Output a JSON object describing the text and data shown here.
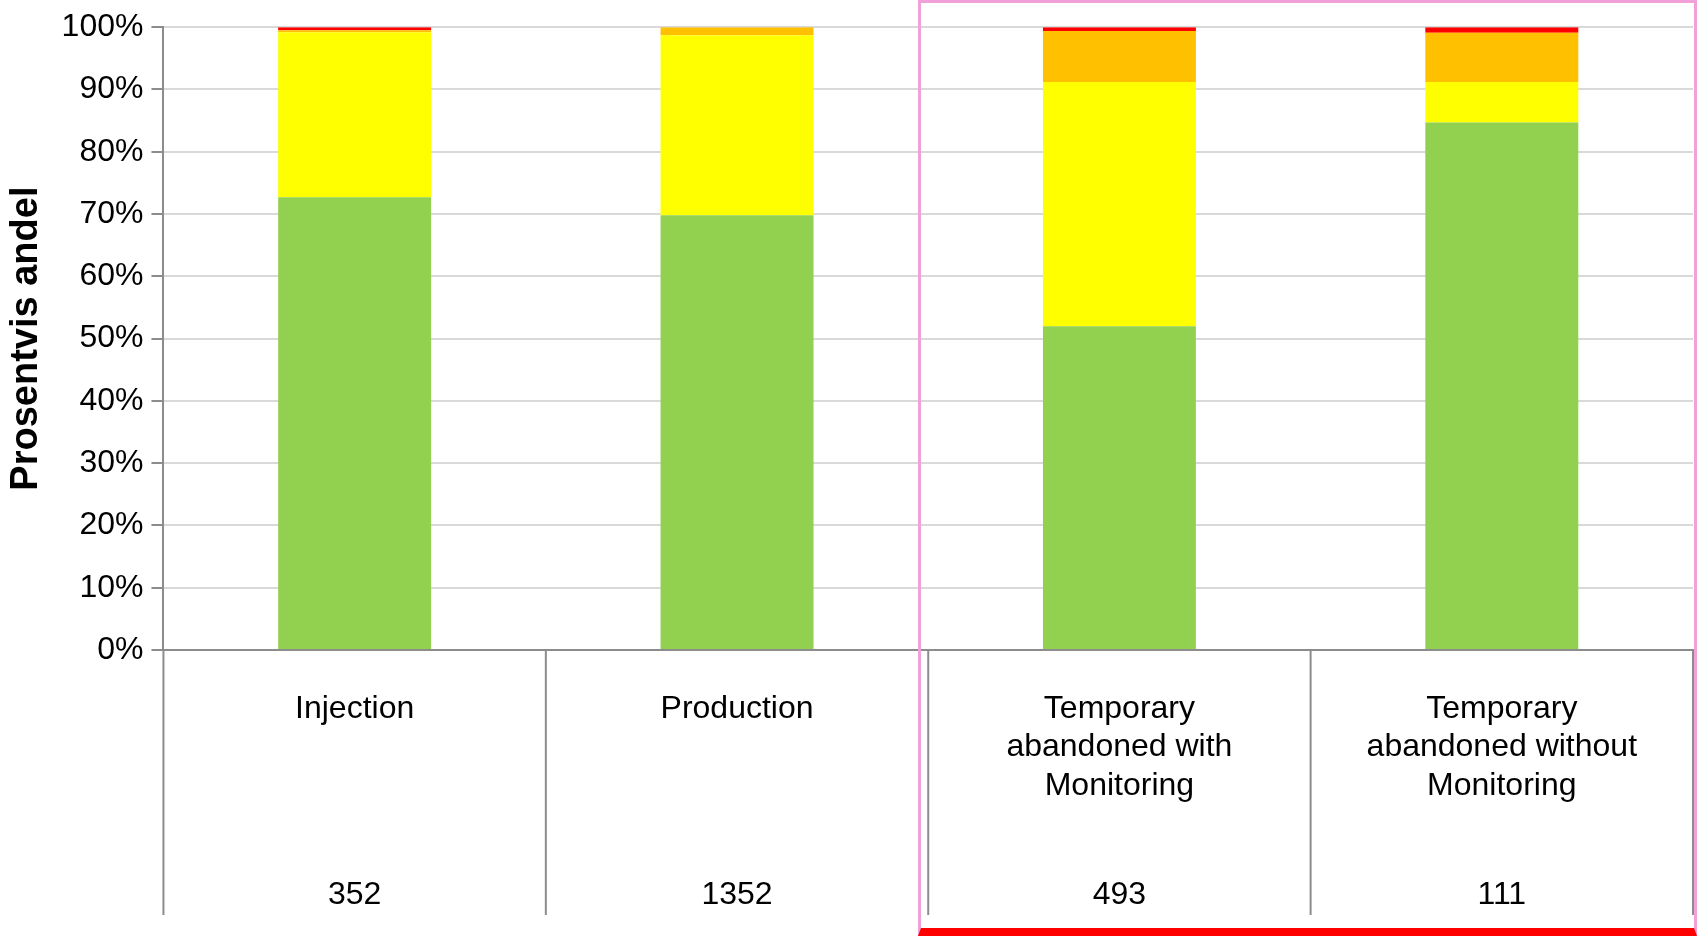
{
  "chart_data": {
    "type": "bar",
    "stacked": true,
    "ylabel": "Prosentvis andel",
    "categories": [
      "Injection",
      "Production",
      "Temporary abandoned with Monitoring",
      "Temporary abandoned without Monitoring"
    ],
    "series": [
      {
        "color": "#92d050",
        "values": [
          72.7,
          69.8,
          52,
          84.7
        ]
      },
      {
        "color": "#ffff00",
        "values": [
          26.5,
          28.9,
          39.2,
          6.5
        ]
      },
      {
        "color": "#ffc000",
        "values": [
          0.3,
          1.3,
          8.2,
          7.9
        ]
      },
      {
        "color": "#ff0000",
        "values": [
          0.5,
          0,
          0.6,
          0.9
        ]
      }
    ],
    "ylim": [
      0,
      100
    ],
    "yticks": [
      {
        "value": 0,
        "label": "0%"
      },
      {
        "value": 10,
        "label": "10%"
      },
      {
        "value": 20,
        "label": "20%"
      },
      {
        "value": 30,
        "label": "30%"
      },
      {
        "value": 40,
        "label": "40%"
      },
      {
        "value": 50,
        "label": "50%"
      },
      {
        "value": 60,
        "label": "60%"
      },
      {
        "value": 70,
        "label": "70%"
      },
      {
        "value": 80,
        "label": "80%"
      },
      {
        "value": 90,
        "label": "90%"
      },
      {
        "value": 100,
        "label": "100%"
      }
    ],
    "grid": "y",
    "legend": false,
    "annotations": [
      "352",
      "1352",
      "493",
      "111"
    ]
  }
}
